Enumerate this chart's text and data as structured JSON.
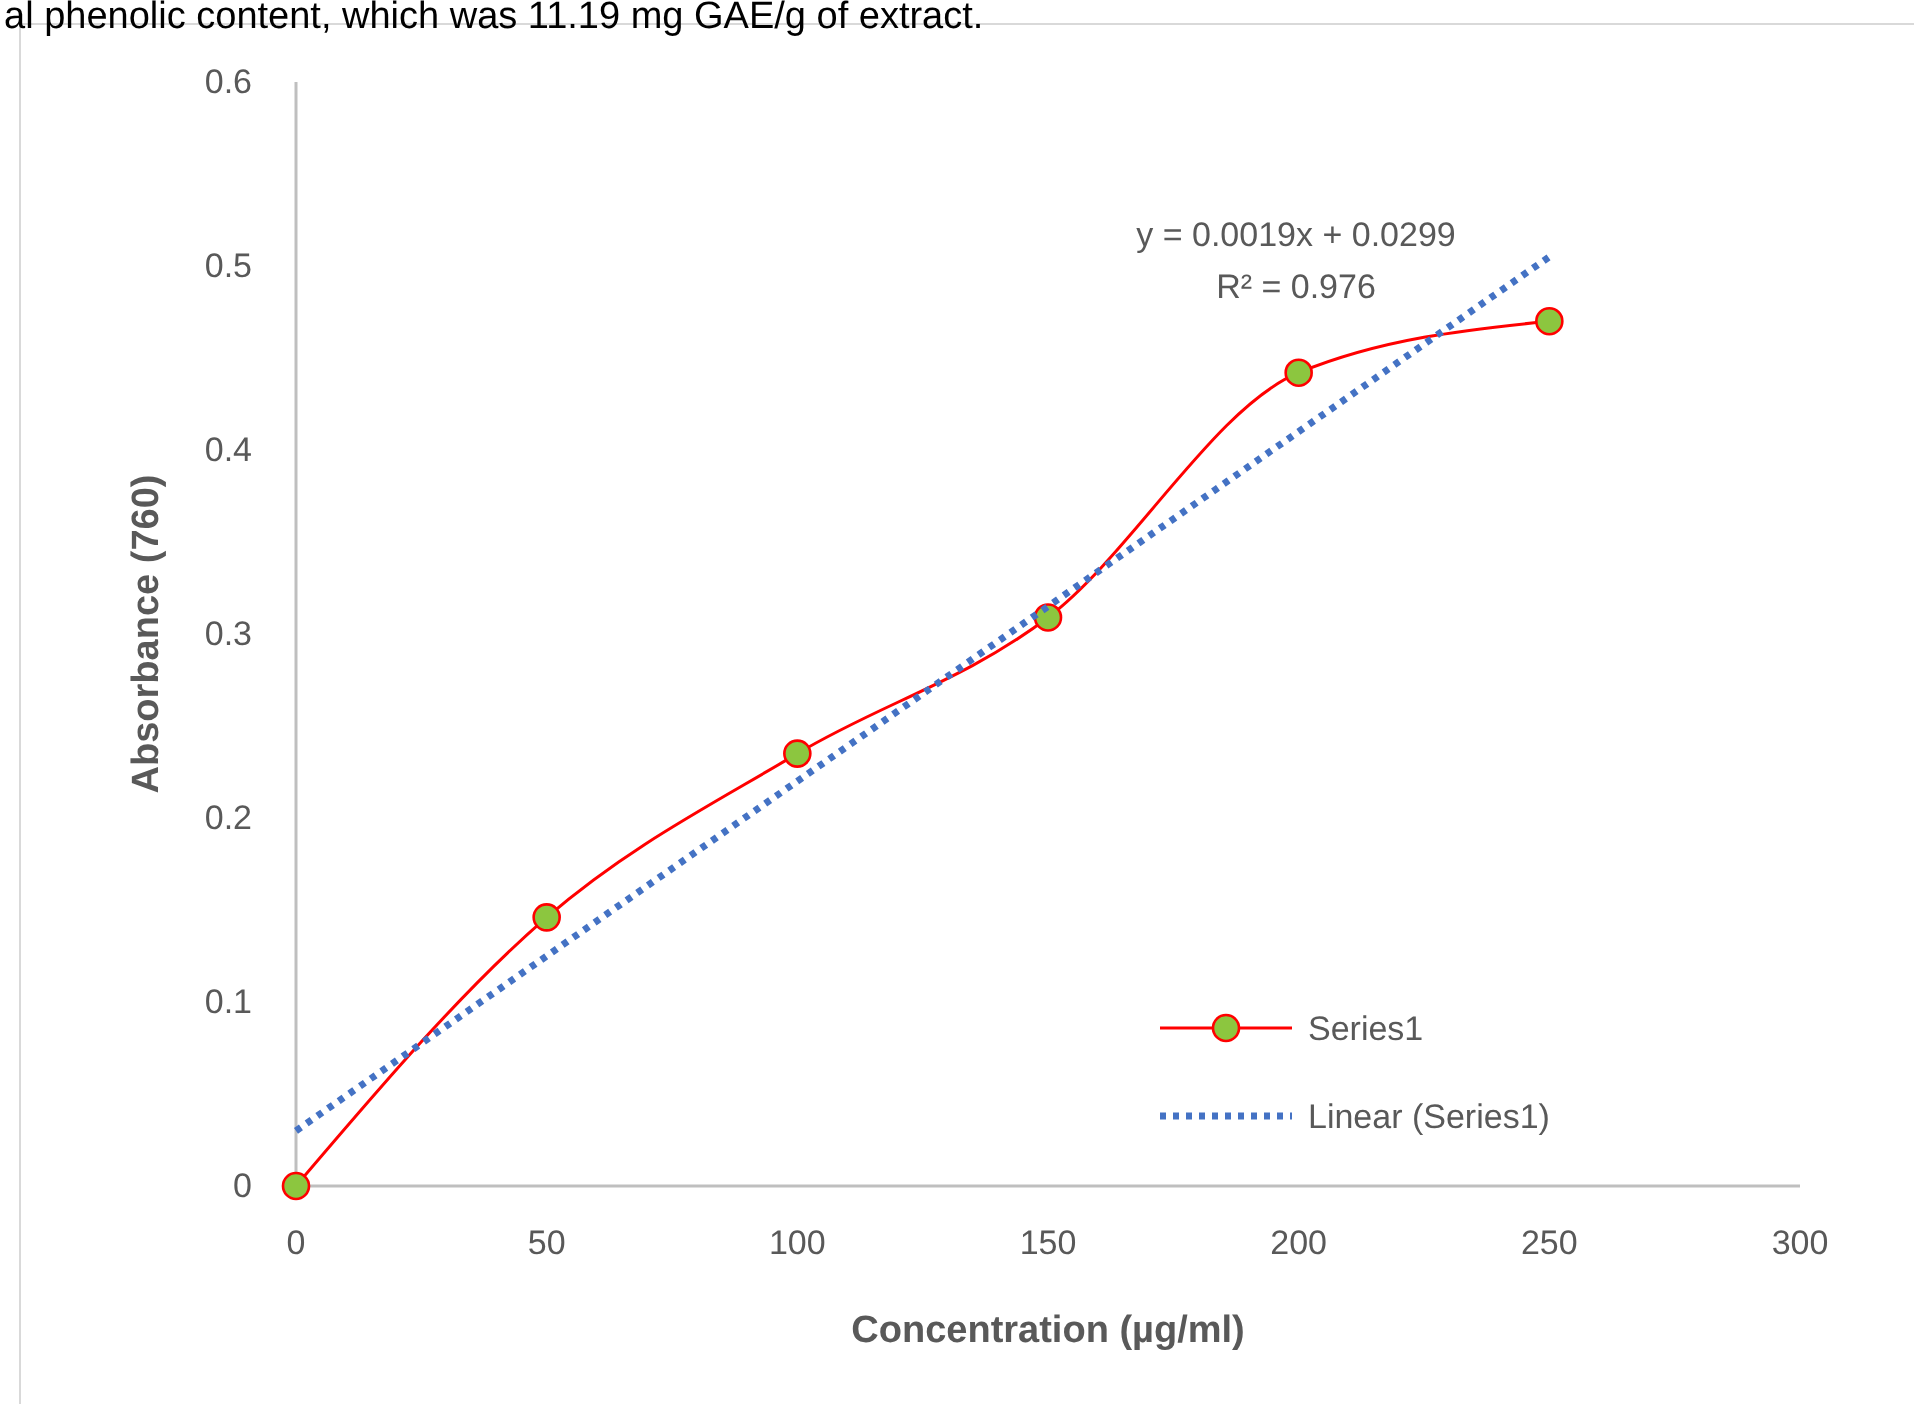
{
  "chart_data": {
    "type": "line",
    "xlabel": "Concentration (µg/ml)",
    "ylabel": "Absorbance (760)",
    "annotations": [
      "al phenolic content, which was 11.19 mg GAE/g of extract.",
      "y = 0.0019x + 0.0299",
      "R² = 0.976"
    ],
    "xlim": [
      0,
      300
    ],
    "xticks": [
      0,
      50,
      100,
      150,
      200,
      250,
      300
    ],
    "ylim": [
      0,
      0.6
    ],
    "yticks": [
      0,
      0.1,
      0.2,
      0.3,
      0.4,
      0.5,
      0.6
    ],
    "grid": false,
    "legend": "bottom right",
    "series": [
      {
        "name": "Series1",
        "color": "#ff0000",
        "marker": "circle",
        "line_style": "solid",
        "x": [
          0,
          50,
          100,
          150,
          200,
          250
        ],
        "values": [
          0,
          0.146,
          0.235,
          0.309,
          0.442,
          0.47
        ]
      },
      {
        "name": "Linear (Series1)",
        "color": "#4472c4",
        "marker": "none",
        "line_style": "dotted",
        "x": [
          0,
          250
        ],
        "values": [
          0.03,
          0.505
        ]
      }
    ]
  }
}
